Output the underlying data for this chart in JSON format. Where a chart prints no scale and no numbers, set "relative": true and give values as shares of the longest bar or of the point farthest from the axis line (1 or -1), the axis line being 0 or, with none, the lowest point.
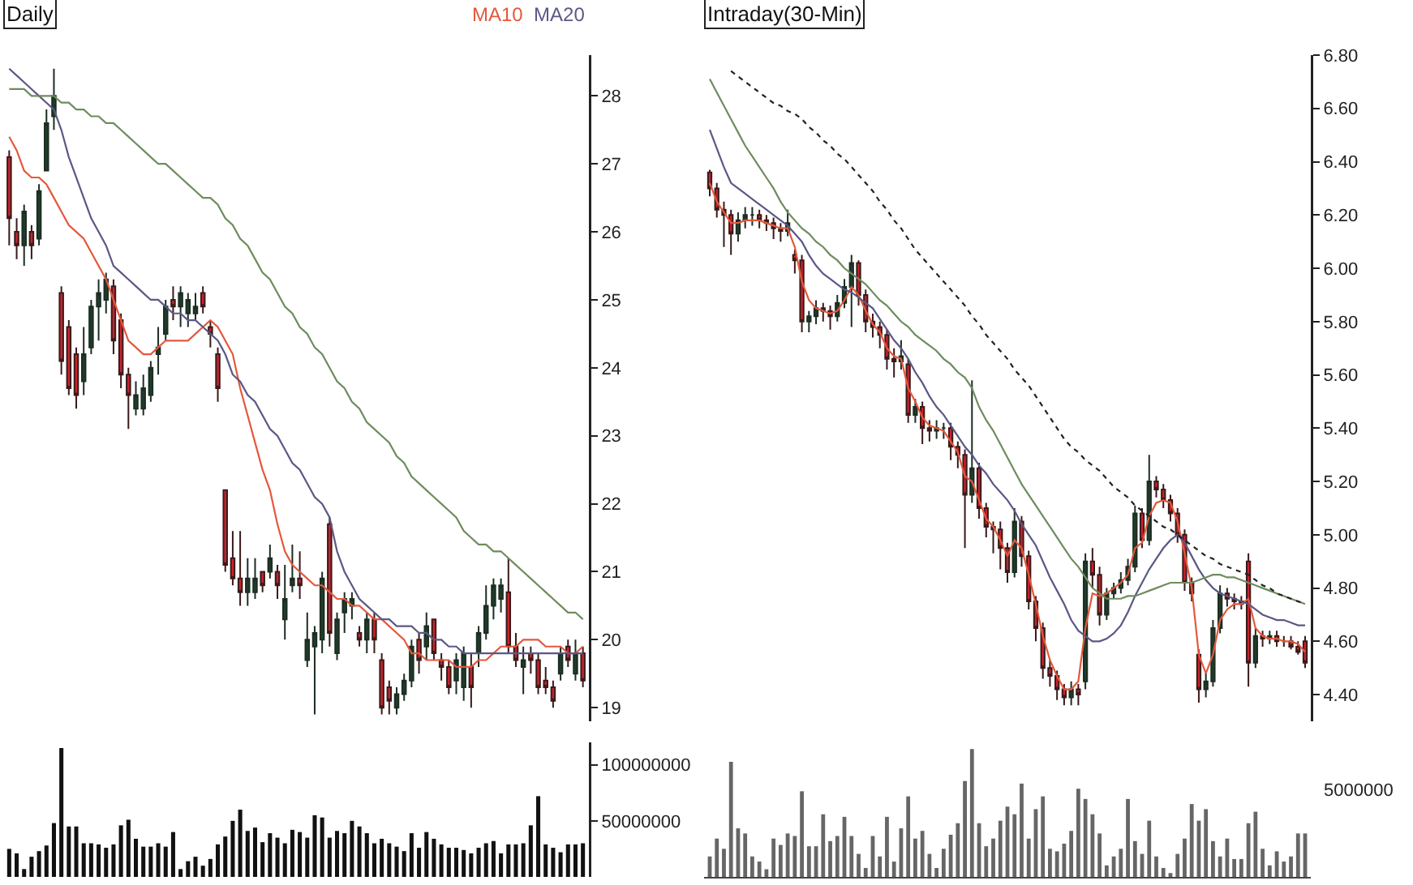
{
  "chart_data": [
    {
      "type": "candlestick",
      "title": "Daily",
      "legend": "top right",
      "tick_labels": "y",
      "ylim": [
        18.8,
        28.6
      ],
      "yticks": [
        19,
        20,
        21,
        22,
        23,
        24,
        25,
        26,
        27,
        28
      ],
      "categories": [
        null,
        null,
        null,
        null,
        null,
        null,
        null,
        null,
        null,
        null,
        null,
        null,
        null,
        null,
        null,
        null,
        null,
        null,
        null,
        null,
        null,
        null,
        null,
        null,
        null,
        null,
        null,
        null,
        null,
        null,
        null,
        null,
        null,
        null,
        null,
        null,
        null,
        null,
        null,
        null,
        null,
        null,
        null,
        null,
        null,
        null,
        null,
        null,
        null,
        null,
        null,
        null,
        null,
        null,
        null,
        null,
        null,
        null,
        null,
        null,
        null,
        null,
        null,
        null,
        null,
        null,
        null,
        null,
        null,
        null,
        null,
        null,
        null,
        null,
        null,
        null,
        null,
        null
      ],
      "ohlc": [
        [
          27.1,
          27.2,
          25.8,
          26.2
        ],
        [
          26.0,
          26.2,
          25.6,
          25.8
        ],
        [
          25.8,
          26.4,
          25.5,
          26.3
        ],
        [
          26.0,
          26.1,
          25.6,
          25.8
        ],
        [
          25.9,
          26.7,
          25.8,
          26.6
        ],
        [
          26.9,
          27.8,
          26.9,
          27.6
        ],
        [
          27.7,
          28.4,
          27.5,
          28.0
        ],
        [
          25.1,
          25.2,
          23.9,
          24.1
        ],
        [
          24.6,
          24.7,
          23.6,
          23.7
        ],
        [
          24.2,
          24.3,
          23.4,
          23.6
        ],
        [
          23.8,
          24.6,
          23.6,
          24.2
        ],
        [
          24.3,
          25.0,
          24.2,
          24.9
        ],
        [
          24.9,
          25.3,
          24.4,
          25.1
        ],
        [
          25.0,
          25.4,
          24.8,
          25.3
        ],
        [
          25.2,
          25.3,
          24.2,
          24.4
        ],
        [
          24.7,
          24.8,
          23.7,
          23.9
        ],
        [
          23.9,
          24.0,
          23.1,
          23.6
        ],
        [
          23.4,
          23.8,
          23.3,
          23.6
        ],
        [
          23.4,
          23.9,
          23.3,
          23.7
        ],
        [
          23.6,
          24.1,
          23.5,
          24.0
        ],
        [
          24.2,
          24.6,
          23.9,
          24.3
        ],
        [
          24.5,
          25.0,
          24.4,
          24.9
        ],
        [
          25.0,
          25.2,
          24.7,
          24.9
        ],
        [
          24.9,
          25.2,
          24.6,
          25.1
        ],
        [
          24.8,
          25.1,
          24.6,
          25.0
        ],
        [
          24.8,
          25.1,
          24.7,
          24.9
        ],
        [
          25.1,
          25.2,
          24.8,
          24.9
        ],
        [
          24.6,
          24.7,
          24.3,
          24.5
        ],
        [
          24.2,
          24.3,
          23.5,
          23.7
        ],
        [
          22.2,
          22.2,
          21.0,
          21.1
        ],
        [
          21.2,
          21.6,
          20.8,
          20.9
        ],
        [
          20.9,
          21.6,
          20.5,
          20.7
        ],
        [
          20.7,
          21.2,
          20.5,
          20.9
        ],
        [
          20.7,
          21.2,
          20.6,
          20.9
        ],
        [
          21.0,
          21.0,
          20.7,
          20.8
        ],
        [
          21.0,
          21.4,
          20.9,
          21.2
        ],
        [
          21.0,
          21.1,
          20.6,
          20.8
        ],
        [
          20.3,
          21.1,
          20.0,
          20.6
        ],
        [
          20.8,
          21.4,
          20.7,
          20.9
        ],
        [
          20.9,
          21.3,
          20.6,
          20.8
        ],
        [
          19.7,
          20.4,
          19.6,
          20.0
        ],
        [
          19.9,
          20.2,
          18.9,
          20.1
        ],
        [
          20.0,
          21.0,
          19.8,
          20.9
        ],
        [
          21.7,
          21.8,
          19.9,
          20.1
        ],
        [
          19.8,
          20.4,
          19.7,
          20.3
        ],
        [
          20.4,
          20.7,
          20.1,
          20.6
        ],
        [
          20.5,
          20.7,
          20.3,
          20.6
        ],
        [
          20.1,
          20.2,
          19.9,
          20.0
        ],
        [
          20.0,
          20.4,
          19.8,
          20.3
        ],
        [
          20.3,
          20.4,
          19.8,
          20.0
        ],
        [
          19.7,
          19.8,
          18.9,
          19.0
        ],
        [
          19.3,
          19.4,
          18.9,
          19.1
        ],
        [
          19.0,
          19.3,
          18.9,
          19.2
        ],
        [
          19.2,
          19.5,
          19.1,
          19.4
        ],
        [
          19.4,
          20.0,
          19.3,
          19.9
        ],
        [
          20.0,
          20.1,
          19.5,
          19.7
        ],
        [
          19.9,
          20.4,
          19.7,
          20.2
        ],
        [
          20.3,
          20.3,
          19.7,
          19.8
        ],
        [
          19.7,
          19.8,
          19.4,
          19.6
        ],
        [
          19.6,
          19.7,
          19.2,
          19.3
        ],
        [
          19.4,
          19.8,
          19.2,
          19.7
        ],
        [
          19.3,
          19.9,
          19.1,
          19.8
        ],
        [
          19.6,
          19.8,
          19.0,
          19.3
        ],
        [
          19.8,
          20.2,
          19.6,
          20.1
        ],
        [
          20.1,
          20.8,
          20.0,
          20.5
        ],
        [
          20.5,
          20.9,
          20.3,
          20.8
        ],
        [
          20.6,
          20.9,
          20.4,
          20.8
        ],
        [
          20.7,
          21.2,
          19.8,
          19.9
        ],
        [
          19.9,
          20.1,
          19.6,
          19.7
        ],
        [
          19.6,
          19.9,
          19.2,
          19.7
        ],
        [
          19.8,
          19.9,
          19.5,
          19.7
        ],
        [
          19.7,
          19.8,
          19.2,
          19.3
        ],
        [
          19.4,
          19.6,
          19.2,
          19.3
        ],
        [
          19.3,
          19.4,
          19.0,
          19.1
        ],
        [
          19.5,
          19.9,
          19.4,
          19.8
        ],
        [
          19.9,
          20.0,
          19.6,
          19.7
        ],
        [
          19.5,
          20.0,
          19.4,
          19.8
        ],
        [
          19.8,
          19.9,
          19.3,
          19.4
        ]
      ],
      "series": [
        {
          "type": "line",
          "name": "MA10",
          "color": "#e4583c",
          "values": [
            27.4,
            27.2,
            26.9,
            26.8,
            26.8,
            26.7,
            26.5,
            26.3,
            26.1,
            26.0,
            25.9,
            25.7,
            25.5,
            25.3,
            25.0,
            24.7,
            24.4,
            24.3,
            24.2,
            24.2,
            24.3,
            24.4,
            24.4,
            24.4,
            24.4,
            24.5,
            24.6,
            24.7,
            24.6,
            24.4,
            24.2,
            23.7,
            23.3,
            22.9,
            22.5,
            22.2,
            21.7,
            21.3,
            21.1,
            21.0,
            20.9,
            20.8,
            20.8,
            20.7,
            20.6,
            20.6,
            20.5,
            20.5,
            20.4,
            20.3,
            20.3,
            20.2,
            20.1,
            20.0,
            19.8,
            19.8,
            19.7,
            19.7,
            19.7,
            19.7,
            19.6,
            19.6,
            19.6,
            19.7,
            19.7,
            19.8,
            19.9,
            19.9,
            19.9,
            20.0,
            20.0,
            20.0,
            19.9,
            19.9,
            19.9,
            19.8,
            19.8,
            19.9
          ]
        },
        {
          "type": "line",
          "name": "MA20",
          "color": "#5a5886",
          "values": [
            28.4,
            28.3,
            28.2,
            28.1,
            28.0,
            27.9,
            27.8,
            27.5,
            27.1,
            26.8,
            26.5,
            26.2,
            26.0,
            25.8,
            25.5,
            25.4,
            25.3,
            25.2,
            25.1,
            25.0,
            25.0,
            24.9,
            24.8,
            24.8,
            24.7,
            24.7,
            24.6,
            24.5,
            24.4,
            24.2,
            23.9,
            23.8,
            23.6,
            23.5,
            23.3,
            23.1,
            23.0,
            22.8,
            22.6,
            22.5,
            22.3,
            22.1,
            22.0,
            21.8,
            21.3,
            21.0,
            20.8,
            20.6,
            20.5,
            20.4,
            20.3,
            20.3,
            20.2,
            20.2,
            20.2,
            20.1,
            20.1,
            20.0,
            20.0,
            19.9,
            19.9,
            19.8,
            19.8,
            19.8,
            19.8,
            19.8,
            19.8,
            19.8,
            19.8,
            19.8,
            19.8,
            19.8,
            19.8,
            19.8,
            19.8,
            19.8,
            19.8,
            19.8
          ]
        },
        {
          "type": "line",
          "color": "#6f8c5e",
          "values": [
            28.1,
            28.1,
            28.1,
            28.0,
            28.0,
            28.0,
            28.0,
            27.9,
            27.9,
            27.8,
            27.8,
            27.7,
            27.7,
            27.6,
            27.6,
            27.5,
            27.4,
            27.3,
            27.2,
            27.1,
            27.0,
            27.0,
            26.9,
            26.8,
            26.7,
            26.6,
            26.5,
            26.5,
            26.4,
            26.2,
            26.1,
            25.9,
            25.8,
            25.6,
            25.4,
            25.3,
            25.1,
            24.9,
            24.8,
            24.6,
            24.5,
            24.3,
            24.2,
            24.0,
            23.8,
            23.7,
            23.5,
            23.4,
            23.2,
            23.1,
            23.0,
            22.9,
            22.7,
            22.6,
            22.4,
            22.3,
            22.2,
            22.1,
            22.0,
            21.9,
            21.8,
            21.6,
            21.5,
            21.4,
            21.4,
            21.3,
            21.3,
            21.2,
            21.1,
            21.0,
            20.9,
            20.8,
            20.7,
            20.6,
            20.5,
            20.4,
            20.4,
            20.3
          ]
        }
      ]
    },
    {
      "type": "bar",
      "tick_labels": "y",
      "color": "#111111",
      "ylim": [
        0,
        120000000
      ],
      "yticks": [
        50000000,
        100000000
      ],
      "categories": [
        null,
        null,
        null,
        null,
        null,
        null,
        null,
        null,
        null,
        null,
        null,
        null,
        null,
        null,
        null,
        null,
        null,
        null,
        null,
        null,
        null,
        null,
        null,
        null,
        null,
        null,
        null,
        null,
        null,
        null,
        null,
        null,
        null,
        null,
        null,
        null,
        null,
        null,
        null,
        null,
        null,
        null,
        null,
        null,
        null,
        null,
        null,
        null,
        null,
        null,
        null,
        null,
        null,
        null,
        null,
        null,
        null,
        null,
        null,
        null,
        null,
        null,
        null,
        null,
        null,
        null,
        null,
        null,
        null,
        null,
        null,
        null,
        null,
        null,
        null,
        null,
        null,
        null
      ],
      "values": [
        25000000,
        21000000,
        7000000,
        18000000,
        23000000,
        28000000,
        48000000,
        115000000,
        45000000,
        45000000,
        30000000,
        30000000,
        29000000,
        26000000,
        29000000,
        46000000,
        51000000,
        34000000,
        27000000,
        27000000,
        30000000,
        27000000,
        40000000,
        7000000,
        14000000,
        18000000,
        10000000,
        16000000,
        29000000,
        36000000,
        50000000,
        60000000,
        41000000,
        44000000,
        31000000,
        39000000,
        35000000,
        30000000,
        42000000,
        40000000,
        35000000,
        55000000,
        53000000,
        35000000,
        41000000,
        39000000,
        50000000,
        45000000,
        39000000,
        30000000,
        34000000,
        30000000,
        27000000,
        23000000,
        39000000,
        26000000,
        40000000,
        34000000,
        29000000,
        26000000,
        26000000,
        24000000,
        21000000,
        26000000,
        30000000,
        32000000,
        21000000,
        29000000,
        29000000,
        30000000,
        46000000,
        72000000,
        29000000,
        26000000,
        22000000,
        29000000,
        29000000,
        30000000
      ]
    },
    {
      "type": "candlestick",
      "title": "Intraday(30-Min)",
      "tick_labels": "y",
      "ylim": [
        4.3,
        6.8
      ],
      "yticks": [
        {
          "value": 4.4,
          "label": "4.40"
        },
        {
          "value": 4.6,
          "label": "4.60"
        },
        {
          "value": 4.8,
          "label": "4.80"
        },
        {
          "value": 5.0,
          "label": "5.00"
        },
        {
          "value": 5.2,
          "label": "5.20"
        },
        {
          "value": 5.4,
          "label": "5.40"
        },
        {
          "value": 5.6,
          "label": "5.60"
        },
        {
          "value": 5.8,
          "label": "5.80"
        },
        {
          "value": 6.0,
          "label": "6.00"
        },
        {
          "value": 6.2,
          "label": "6.20"
        },
        {
          "value": 6.4,
          "label": "6.40"
        },
        {
          "value": 6.6,
          "label": "6.60"
        },
        {
          "value": 6.8,
          "label": "6.80"
        }
      ],
      "categories": [
        null,
        null,
        null,
        null,
        null,
        null,
        null,
        null,
        null,
        null,
        null,
        null,
        null,
        null,
        null,
        null,
        null,
        null,
        null,
        null,
        null,
        null,
        null,
        null,
        null,
        null,
        null,
        null,
        null,
        null,
        null,
        null,
        null,
        null,
        null,
        null,
        null,
        null,
        null,
        null,
        null,
        null,
        null,
        null,
        null,
        null,
        null,
        null,
        null,
        null,
        null,
        null,
        null,
        null,
        null,
        null,
        null,
        null,
        null,
        null,
        null,
        null,
        null,
        null,
        null,
        null,
        null,
        null,
        null,
        null,
        null,
        null,
        null,
        null,
        null,
        null,
        null,
        null,
        null,
        null,
        null,
        null,
        null,
        null,
        null
      ],
      "ohlc": [
        [
          6.36,
          6.37,
          6.27,
          6.3
        ],
        [
          6.3,
          6.32,
          6.19,
          6.22
        ],
        [
          6.22,
          6.25,
          6.08,
          6.2
        ],
        [
          6.2,
          6.22,
          6.05,
          6.13
        ],
        [
          6.13,
          6.21,
          6.1,
          6.18
        ],
        [
          6.18,
          6.23,
          6.15,
          6.2
        ],
        [
          6.2,
          6.23,
          6.16,
          6.2
        ],
        [
          6.2,
          6.22,
          6.15,
          6.18
        ],
        [
          6.18,
          6.2,
          6.14,
          6.17
        ],
        [
          6.17,
          6.19,
          6.11,
          6.15
        ],
        [
          6.15,
          6.17,
          6.1,
          6.14
        ],
        [
          6.14,
          6.22,
          6.12,
          6.17
        ],
        [
          6.05,
          6.07,
          5.98,
          6.03
        ],
        [
          6.03,
          6.05,
          5.76,
          5.8
        ],
        [
          5.8,
          5.84,
          5.76,
          5.82
        ],
        [
          5.82,
          5.88,
          5.79,
          5.85
        ],
        [
          5.85,
          5.87,
          5.8,
          5.84
        ],
        [
          5.84,
          5.86,
          5.77,
          5.82
        ],
        [
          5.82,
          5.9,
          5.8,
          5.87
        ],
        [
          5.87,
          5.96,
          5.85,
          5.93
        ],
        [
          5.93,
          6.05,
          5.78,
          6.02
        ],
        [
          6.02,
          6.03,
          5.86,
          5.9
        ],
        [
          5.9,
          5.92,
          5.76,
          5.8
        ],
        [
          5.8,
          5.83,
          5.74,
          5.78
        ],
        [
          5.78,
          5.8,
          5.7,
          5.75
        ],
        [
          5.75,
          5.77,
          5.62,
          5.66
        ],
        [
          5.66,
          5.7,
          5.59,
          5.65
        ],
        [
          5.65,
          5.73,
          5.62,
          5.67
        ],
        [
          5.64,
          5.66,
          5.42,
          5.45
        ],
        [
          5.45,
          5.51,
          5.42,
          5.48
        ],
        [
          5.48,
          5.5,
          5.34,
          5.4
        ],
        [
          5.4,
          5.43,
          5.35,
          5.39
        ],
        [
          5.39,
          5.43,
          5.36,
          5.4
        ],
        [
          5.4,
          5.42,
          5.36,
          5.4
        ],
        [
          5.4,
          5.42,
          5.28,
          5.33
        ],
        [
          5.33,
          5.35,
          5.25,
          5.3
        ],
        [
          5.3,
          5.32,
          4.95,
          5.15
        ],
        [
          5.15,
          5.58,
          5.12,
          5.25
        ],
        [
          5.25,
          5.27,
          5.06,
          5.1
        ],
        [
          5.1,
          5.12,
          4.99,
          5.03
        ],
        [
          5.03,
          5.05,
          4.93,
          5.02
        ],
        [
          5.02,
          5.05,
          4.87,
          4.95
        ],
        [
          4.95,
          4.97,
          4.82,
          4.86
        ],
        [
          4.86,
          5.1,
          4.84,
          5.05
        ],
        [
          5.05,
          5.07,
          4.88,
          4.92
        ],
        [
          4.92,
          4.94,
          4.72,
          4.75
        ],
        [
          4.75,
          4.77,
          4.6,
          4.65
        ],
        [
          4.65,
          4.67,
          4.46,
          4.5
        ],
        [
          4.5,
          4.53,
          4.43,
          4.47
        ],
        [
          4.47,
          4.49,
          4.38,
          4.42
        ],
        [
          4.42,
          4.44,
          4.36,
          4.39
        ],
        [
          4.39,
          4.45,
          4.36,
          4.42
        ],
        [
          4.42,
          4.44,
          4.36,
          4.4
        ],
        [
          4.45,
          4.93,
          4.42,
          4.9
        ],
        [
          4.9,
          4.95,
          4.8,
          4.85
        ],
        [
          4.85,
          4.88,
          4.66,
          4.7
        ],
        [
          4.7,
          4.8,
          4.68,
          4.78
        ],
        [
          4.78,
          4.82,
          4.76,
          4.8
        ],
        [
          4.8,
          4.86,
          4.78,
          4.83
        ],
        [
          4.83,
          4.91,
          4.81,
          4.88
        ],
        [
          4.88,
          5.11,
          4.86,
          5.08
        ],
        [
          5.08,
          5.1,
          4.95,
          4.98
        ],
        [
          4.98,
          5.3,
          4.96,
          5.2
        ],
        [
          5.2,
          5.22,
          5.14,
          5.17
        ],
        [
          5.17,
          5.19,
          5.1,
          5.13
        ],
        [
          5.13,
          5.15,
          5.05,
          5.08
        ],
        [
          5.08,
          5.1,
          4.97,
          5.0
        ],
        [
          5.0,
          5.02,
          4.79,
          4.82
        ],
        [
          4.82,
          4.84,
          4.75,
          4.78
        ],
        [
          4.55,
          4.57,
          4.37,
          4.42
        ],
        [
          4.42,
          4.48,
          4.39,
          4.45
        ],
        [
          4.45,
          4.68,
          4.43,
          4.65
        ],
        [
          4.65,
          4.81,
          4.63,
          4.78
        ],
        [
          4.78,
          4.8,
          4.73,
          4.76
        ],
        [
          4.76,
          4.78,
          4.72,
          4.75
        ],
        [
          4.75,
          4.77,
          4.72,
          4.74
        ],
        [
          4.9,
          4.93,
          4.43,
          4.52
        ],
        [
          4.52,
          4.65,
          4.5,
          4.62
        ],
        [
          4.62,
          4.64,
          4.58,
          4.61
        ],
        [
          4.61,
          4.64,
          4.59,
          4.62
        ],
        [
          4.62,
          4.64,
          4.58,
          4.6
        ],
        [
          4.6,
          4.62,
          4.58,
          4.6
        ],
        [
          4.6,
          4.62,
          4.57,
          4.58
        ],
        [
          4.58,
          4.6,
          4.55,
          4.56
        ],
        [
          4.6,
          4.62,
          4.5,
          4.52
        ]
      ],
      "series": [
        {
          "type": "line",
          "color": "#e4583c",
          "values": [
            6.32,
            6.25,
            6.21,
            6.17,
            6.17,
            6.18,
            6.18,
            6.18,
            6.17,
            6.16,
            6.15,
            6.15,
            6.08,
            5.95,
            5.88,
            5.85,
            5.84,
            5.83,
            5.84,
            5.88,
            5.93,
            5.9,
            5.84,
            5.79,
            5.76,
            5.7,
            5.67,
            5.66,
            5.55,
            5.5,
            5.44,
            5.41,
            5.4,
            5.39,
            5.35,
            5.31,
            5.22,
            5.2,
            5.13,
            5.06,
            5.03,
            4.98,
            4.92,
            4.98,
            4.95,
            4.85,
            4.74,
            4.62,
            4.53,
            4.47,
            4.42,
            4.42,
            4.45,
            4.65,
            4.78,
            4.77,
            4.78,
            4.8,
            4.82,
            4.85,
            4.95,
            4.97,
            5.07,
            5.12,
            5.13,
            5.12,
            5.05,
            4.93,
            4.8,
            4.55,
            4.48,
            4.55,
            4.68,
            4.72,
            4.74,
            4.74,
            4.76,
            4.65,
            4.62,
            4.61,
            4.61,
            4.6,
            4.6,
            4.59,
            4.56
          ]
        },
        {
          "type": "line",
          "color": "#5a5886",
          "values": [
            6.52,
            6.45,
            6.38,
            6.32,
            6.3,
            6.28,
            6.26,
            6.24,
            6.22,
            6.2,
            6.18,
            6.16,
            6.13,
            6.1,
            6.05,
            6.01,
            5.98,
            5.96,
            5.94,
            5.92,
            5.91,
            5.89,
            5.87,
            5.85,
            5.81,
            5.77,
            5.73,
            5.7,
            5.66,
            5.61,
            5.57,
            5.52,
            5.48,
            5.45,
            5.41,
            5.37,
            5.33,
            5.3,
            5.26,
            5.23,
            5.19,
            5.16,
            5.13,
            5.09,
            5.04,
            5.0,
            4.96,
            4.9,
            4.84,
            4.79,
            4.74,
            4.68,
            4.64,
            4.62,
            4.6,
            4.6,
            4.61,
            4.63,
            4.66,
            4.71,
            4.77,
            4.82,
            4.87,
            4.91,
            4.95,
            4.98,
            5.0,
            4.97,
            4.92,
            4.87,
            4.83,
            4.8,
            4.78,
            4.77,
            4.76,
            4.75,
            4.74,
            4.72,
            4.7,
            4.69,
            4.68,
            4.68,
            4.67,
            4.66,
            4.66
          ]
        },
        {
          "type": "line",
          "color": "#6f8c5e",
          "values": [
            6.71,
            6.66,
            6.61,
            6.56,
            6.51,
            6.46,
            6.42,
            6.38,
            6.34,
            6.3,
            6.25,
            6.21,
            6.18,
            6.15,
            6.13,
            6.1,
            6.08,
            6.05,
            6.03,
            6.0,
            5.98,
            5.96,
            5.94,
            5.91,
            5.88,
            5.86,
            5.83,
            5.8,
            5.78,
            5.75,
            5.73,
            5.71,
            5.69,
            5.66,
            5.64,
            5.61,
            5.59,
            5.55,
            5.48,
            5.43,
            5.39,
            5.34,
            5.29,
            5.24,
            5.19,
            5.15,
            5.11,
            5.07,
            5.03,
            4.99,
            4.95,
            4.91,
            4.88,
            4.84,
            4.8,
            4.78,
            4.76,
            4.76,
            4.76,
            4.77,
            4.77,
            4.78,
            4.79,
            4.8,
            4.81,
            4.82,
            4.82,
            4.82,
            4.82,
            4.83,
            4.84,
            4.85,
            4.85,
            4.84,
            4.84,
            4.83,
            4.82,
            4.81,
            4.8,
            4.79,
            4.78,
            4.77,
            4.76,
            4.75,
            4.74
          ]
        },
        {
          "type": "line",
          "color": "#222222",
          "line_style": "dotted",
          "values": [
            null,
            null,
            null,
            6.74,
            6.72,
            6.7,
            6.68,
            6.66,
            6.64,
            6.62,
            6.61,
            6.59,
            6.58,
            6.56,
            6.53,
            6.51,
            6.48,
            6.46,
            6.43,
            6.41,
            6.38,
            6.35,
            6.32,
            6.29,
            6.25,
            6.22,
            6.18,
            6.15,
            6.11,
            6.07,
            6.04,
            6.01,
            5.98,
            5.95,
            5.92,
            5.89,
            5.86,
            5.82,
            5.79,
            5.75,
            5.72,
            5.69,
            5.66,
            5.62,
            5.59,
            5.56,
            5.52,
            5.48,
            5.44,
            5.4,
            5.36,
            5.33,
            5.31,
            5.28,
            5.26,
            5.24,
            5.21,
            5.18,
            5.16,
            5.14,
            5.11,
            5.09,
            5.07,
            5.05,
            5.03,
            5.02,
            5.0,
            4.98,
            4.96,
            4.94,
            4.92,
            4.91,
            4.89,
            4.88,
            4.87,
            4.86,
            4.85,
            4.83,
            4.81,
            4.8,
            4.78,
            4.77,
            4.76,
            4.75,
            4.74
          ]
        }
      ]
    },
    {
      "type": "bar",
      "relative": true,
      "color": "#666666",
      "annotations": [
        "5000000"
      ],
      "categories": [
        null,
        null,
        null,
        null,
        null,
        null,
        null,
        null,
        null,
        null,
        null,
        null,
        null,
        null,
        null,
        null,
        null,
        null,
        null,
        null,
        null,
        null,
        null,
        null,
        null,
        null,
        null,
        null,
        null,
        null,
        null,
        null,
        null,
        null,
        null,
        null,
        null,
        null,
        null,
        null,
        null,
        null,
        null,
        null,
        null,
        null,
        null,
        null,
        null,
        null,
        null,
        null,
        null,
        null,
        null,
        null,
        null,
        null,
        null,
        null,
        null,
        null,
        null,
        null,
        null,
        null,
        null,
        null,
        null,
        null,
        null,
        null,
        null,
        null,
        null,
        null,
        null,
        null,
        null,
        null,
        null,
        null,
        null,
        null,
        null
      ],
      "values": [
        0.16,
        0.3,
        0.22,
        0.9,
        0.38,
        0.34,
        0.16,
        0.12,
        0.06,
        0.3,
        0.25,
        0.34,
        0.32,
        0.67,
        0.24,
        0.24,
        0.49,
        0.28,
        0.32,
        0.47,
        0.32,
        0.18,
        0.07,
        0.32,
        0.16,
        0.47,
        0.12,
        0.38,
        0.63,
        0.3,
        0.36,
        0.18,
        0.07,
        0.22,
        0.33,
        0.42,
        0.75,
        1,
        0.42,
        0.24,
        0.3,
        0.44,
        0.55,
        0.49,
        0.73,
        0.3,
        0.53,
        0.63,
        0.22,
        0.2,
        0.26,
        0.36,
        0.69,
        0.61,
        0.49,
        0.34,
        0.09,
        0.16,
        0.22,
        0.61,
        0.28,
        0.18,
        0.44,
        0.16,
        0.07,
        0.03,
        0.18,
        0.3,
        0.57,
        0.44,
        0.53,
        0.28,
        0.16,
        0.3,
        0.14,
        0.14,
        0.42,
        0.51,
        0.22,
        0.09,
        0.2,
        0.12,
        0.16,
        0.34,
        0.34
      ]
    }
  ]
}
